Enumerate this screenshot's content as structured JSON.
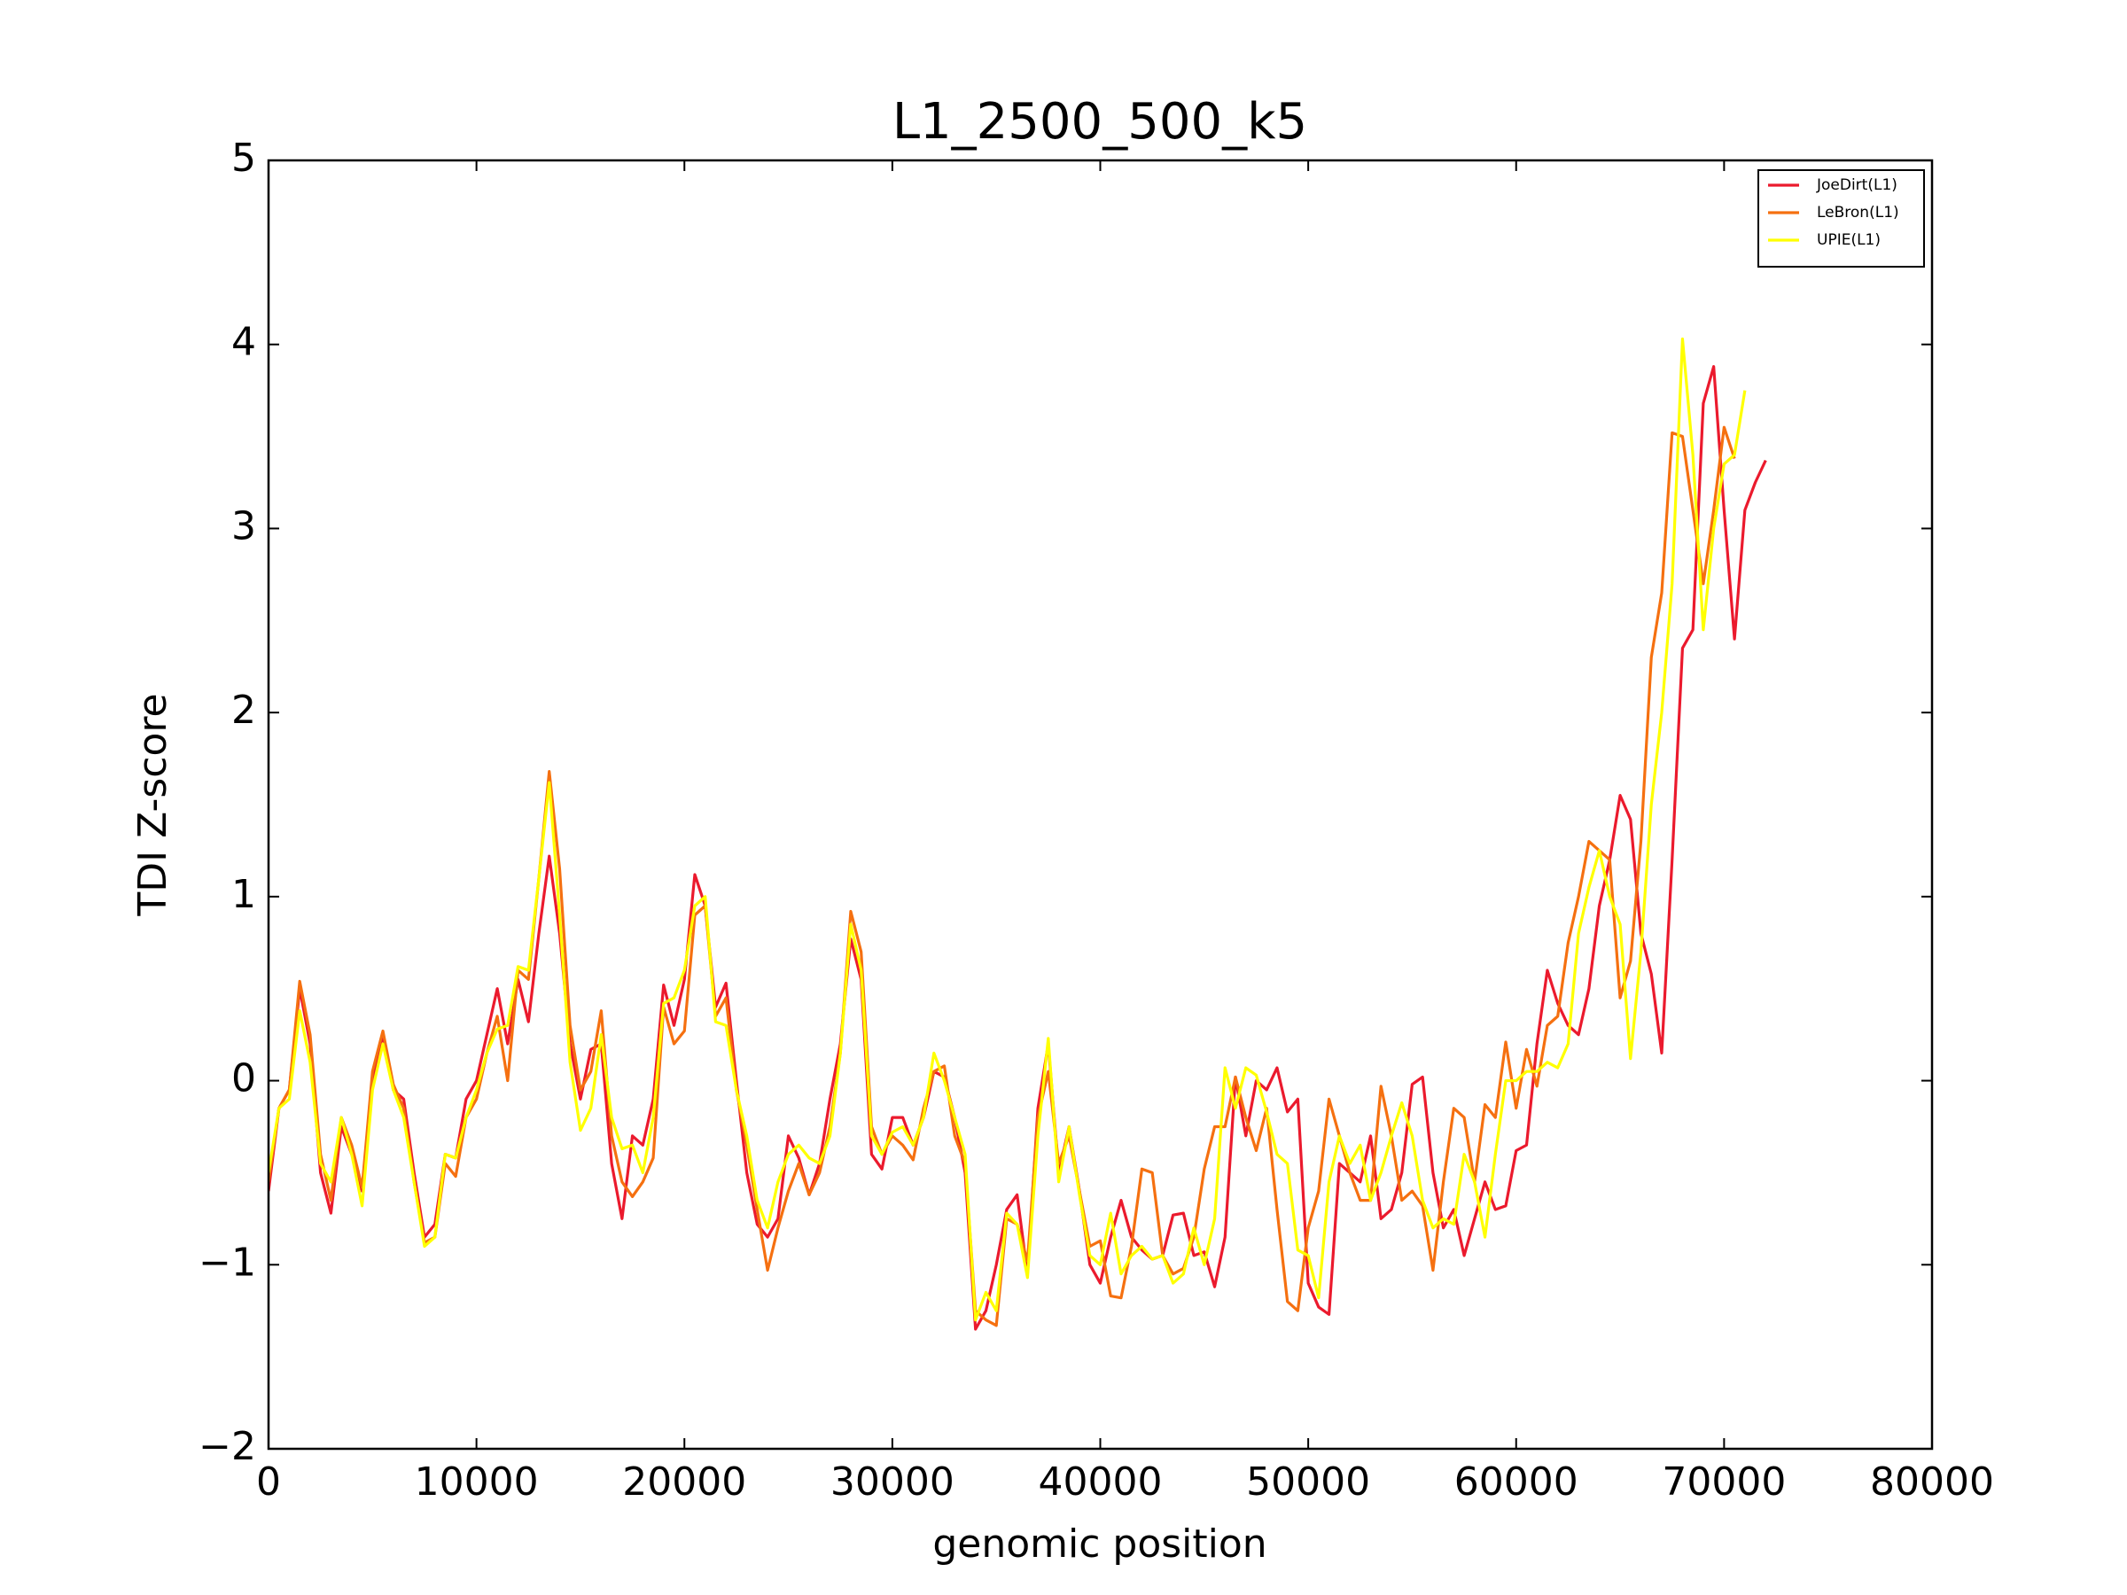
{
  "chart_data": {
    "type": "line",
    "title": "L1_2500_500_k5",
    "xlabel": "genomic position",
    "ylabel": "TDI Z-score",
    "xlim": [
      0,
      80000
    ],
    "xticks": [
      0,
      10000,
      20000,
      30000,
      40000,
      50000,
      60000,
      70000,
      80000
    ],
    "ylim": [
      -2,
      5
    ],
    "yticks": [
      {
        "value": -2,
        "label": "−2"
      },
      {
        "value": -1,
        "label": "−1"
      },
      0,
      1,
      2,
      3,
      4,
      5
    ],
    "grid": false,
    "legend": "upper right",
    "series": [
      {
        "name": "JoeDirt(L1)",
        "color": "#eb1a2d",
        "x": [
          0,
          500,
          1000,
          1500,
          2000,
          2500,
          3000,
          3500,
          4000,
          4500,
          5000,
          5500,
          6000,
          6500,
          7000,
          7500,
          8000,
          8500,
          9000,
          9500,
          10000,
          10500,
          11000,
          11500,
          12000,
          12500,
          13000,
          13500,
          14000,
          14500,
          15000,
          15500,
          16000,
          16500,
          17000,
          17500,
          18000,
          18500,
          19000,
          19500,
          20000,
          20500,
          21000,
          21500,
          22000,
          22500,
          23000,
          23500,
          24000,
          24500,
          25000,
          25500,
          26000,
          26500,
          27000,
          27500,
          28000,
          28500,
          29000,
          29500,
          30000,
          30500,
          31000,
          31500,
          32000,
          32500,
          33000,
          33500,
          34000,
          34500,
          35000,
          35500,
          36000,
          36500,
          37000,
          37500,
          38000,
          38500,
          39000,
          39500,
          40000,
          40500,
          41000,
          41500,
          42000,
          42500,
          43000,
          43500,
          44000,
          44500,
          45000,
          45500,
          46000,
          46500,
          47000,
          47500,
          48000,
          48500,
          49000,
          49500,
          50000,
          50500,
          51000,
          51500,
          52000,
          52500,
          53000,
          53500,
          54000,
          54500,
          55000,
          55500,
          56000,
          56500,
          57000,
          57500,
          58000,
          58500,
          59000,
          59500,
          60000,
          60500,
          61000,
          61500,
          62000,
          62500,
          63000,
          63500,
          64000,
          64500,
          65000,
          65500,
          66000,
          66500,
          67000,
          67500,
          68000,
          68500,
          69000,
          69500,
          70000,
          70500,
          71000,
          71500,
          72000
        ],
        "values": [
          -0.6,
          -0.15,
          -0.05,
          0.5,
          0.2,
          -0.5,
          -0.72,
          -0.25,
          -0.4,
          -0.6,
          0.0,
          0.25,
          -0.05,
          -0.1,
          -0.5,
          -0.85,
          -0.78,
          -0.4,
          -0.42,
          -0.1,
          0.0,
          0.25,
          0.5,
          0.2,
          0.55,
          0.32,
          0.8,
          1.22,
          0.8,
          0.2,
          -0.1,
          0.17,
          0.2,
          -0.45,
          -0.75,
          -0.3,
          -0.35,
          -0.1,
          0.52,
          0.3,
          0.55,
          1.12,
          0.95,
          0.4,
          0.53,
          0.0,
          -0.5,
          -0.78,
          -0.85,
          -0.75,
          -0.3,
          -0.42,
          -0.62,
          -0.45,
          -0.1,
          0.2,
          0.77,
          0.55,
          -0.4,
          -0.48,
          -0.2,
          -0.2,
          -0.35,
          -0.2,
          0.05,
          0.02,
          -0.2,
          -0.5,
          -1.35,
          -1.25,
          -1.0,
          -0.7,
          -0.62,
          -1.05,
          -0.15,
          0.2,
          -0.5,
          -0.25,
          -0.6,
          -1.0,
          -1.1,
          -0.85,
          -0.65,
          -0.85,
          -0.92,
          -0.97,
          -0.95,
          -0.73,
          -0.72,
          -0.95,
          -0.93,
          -1.12,
          -0.85,
          0.02,
          -0.3,
          0.0,
          -0.05,
          0.07,
          -0.17,
          -0.1,
          -1.1,
          -1.23,
          -1.27,
          -0.45,
          -0.5,
          -0.55,
          -0.3,
          -0.75,
          -0.7,
          -0.5,
          -0.02,
          0.02,
          -0.5,
          -0.8,
          -0.7,
          -0.95,
          -0.75,
          -0.55,
          -0.7,
          -0.68,
          -0.38,
          -0.35,
          0.2,
          0.6,
          0.42,
          0.3,
          0.25,
          0.5,
          0.95,
          1.2,
          1.55,
          1.42,
          0.8,
          0.58,
          0.15,
          1.2,
          2.35,
          2.45,
          3.68,
          3.88,
          3.1,
          2.4,
          3.1,
          3.25,
          3.37
        ]
      },
      {
        "name": "LeBron(L1)",
        "color": "#f57010",
        "x": [
          0,
          500,
          1000,
          1500,
          2000,
          2500,
          3000,
          3500,
          4000,
          4500,
          5000,
          5500,
          6000,
          6500,
          7000,
          7500,
          8000,
          8500,
          9000,
          9500,
          10000,
          10500,
          11000,
          11500,
          12000,
          12500,
          13000,
          13500,
          14000,
          14500,
          15000,
          15500,
          16000,
          16500,
          17000,
          17500,
          18000,
          18500,
          19000,
          19500,
          20000,
          20500,
          21000,
          21500,
          22000,
          22500,
          23000,
          23500,
          24000,
          24500,
          25000,
          25500,
          26000,
          26500,
          27000,
          27500,
          28000,
          28500,
          29000,
          29500,
          30000,
          30500,
          31000,
          31500,
          32000,
          32500,
          33000,
          33500,
          34000,
          34500,
          35000,
          35500,
          36000,
          36500,
          37000,
          37500,
          38000,
          38500,
          39000,
          39500,
          40000,
          40500,
          41000,
          41500,
          42000,
          42500,
          43000,
          43500,
          44000,
          44500,
          45000,
          45500,
          46000,
          46500,
          47000,
          47500,
          48000,
          48500,
          49000,
          49500,
          50000,
          50500,
          51000,
          51500,
          52000,
          52500,
          53000,
          53500,
          54000,
          54500,
          55000,
          55500,
          56000,
          56500,
          57000,
          57500,
          58000,
          58500,
          59000,
          59500,
          60000,
          60500,
          61000,
          61500,
          62000,
          62500,
          63000,
          63500,
          64000,
          64500,
          65000,
          65500,
          66000,
          66500,
          67000,
          67500,
          68000,
          68500,
          69000,
          69500,
          70000,
          70500
        ],
        "values": [
          -0.55,
          -0.15,
          -0.05,
          0.54,
          0.25,
          -0.4,
          -0.65,
          -0.2,
          -0.35,
          -0.58,
          0.05,
          0.27,
          -0.02,
          -0.15,
          -0.55,
          -0.88,
          -0.85,
          -0.45,
          -0.52,
          -0.2,
          -0.1,
          0.15,
          0.35,
          0.0,
          0.6,
          0.55,
          1.1,
          1.68,
          1.15,
          0.3,
          -0.05,
          0.05,
          0.38,
          -0.3,
          -0.55,
          -0.63,
          -0.55,
          -0.42,
          0.4,
          0.2,
          0.27,
          0.9,
          0.95,
          0.35,
          0.45,
          -0.05,
          -0.35,
          -0.7,
          -1.03,
          -0.8,
          -0.6,
          -0.45,
          -0.62,
          -0.5,
          -0.25,
          0.15,
          0.92,
          0.7,
          -0.25,
          -0.4,
          -0.3,
          -0.35,
          -0.43,
          -0.15,
          0.05,
          0.08,
          -0.3,
          -0.45,
          -1.25,
          -1.3,
          -1.33,
          -0.75,
          -0.78,
          -0.98,
          -0.2,
          0.05,
          -0.45,
          -0.3,
          -0.6,
          -0.9,
          -0.87,
          -1.17,
          -1.18,
          -0.9,
          -0.48,
          -0.5,
          -0.95,
          -1.05,
          -1.02,
          -0.85,
          -0.48,
          -0.25,
          -0.25,
          0.02,
          -0.2,
          -0.38,
          -0.15,
          -0.7,
          -1.2,
          -1.25,
          -0.8,
          -0.6,
          -0.1,
          -0.3,
          -0.5,
          -0.65,
          -0.65,
          -0.03,
          -0.3,
          -0.65,
          -0.6,
          -0.68,
          -1.03,
          -0.55,
          -0.15,
          -0.2,
          -0.55,
          -0.13,
          -0.2,
          0.21,
          -0.15,
          0.17,
          -0.03,
          0.3,
          0.35,
          0.75,
          1.0,
          1.3,
          1.25,
          1.2,
          0.45,
          0.65,
          1.3,
          2.3,
          2.65,
          3.52,
          3.5,
          3.1,
          2.7,
          3.1,
          3.55,
          3.38
        ]
      },
      {
        "name": "UPIE(L1)",
        "color": "#ffff00",
        "x": [
          0,
          500,
          1000,
          1500,
          2000,
          2500,
          3000,
          3500,
          4000,
          4500,
          5000,
          5500,
          6000,
          6500,
          7000,
          7500,
          8000,
          8500,
          9000,
          9500,
          10000,
          10500,
          11000,
          11500,
          12000,
          12500,
          13000,
          13500,
          14000,
          14500,
          15000,
          15500,
          16000,
          16500,
          17000,
          17500,
          18000,
          18500,
          19000,
          19500,
          20000,
          20500,
          21000,
          21500,
          22000,
          22500,
          23000,
          23500,
          24000,
          24500,
          25000,
          25500,
          26000,
          26500,
          27000,
          27500,
          28000,
          28500,
          29000,
          29500,
          30000,
          30500,
          31000,
          31500,
          32000,
          32500,
          33000,
          33500,
          34000,
          34500,
          35000,
          35500,
          36000,
          36500,
          37000,
          37500,
          38000,
          38500,
          39000,
          39500,
          40000,
          40500,
          41000,
          41500,
          42000,
          42500,
          43000,
          43500,
          44000,
          44500,
          45000,
          45500,
          46000,
          46500,
          47000,
          47500,
          48000,
          48500,
          49000,
          49500,
          50000,
          50500,
          51000,
          51500,
          52000,
          52500,
          53000,
          53500,
          54000,
          54500,
          55000,
          55500,
          56000,
          56500,
          57000,
          57500,
          58000,
          58500,
          59000,
          59500,
          60000,
          60500,
          61000,
          61500,
          62000,
          62500,
          63000,
          63500,
          64000,
          64500,
          65000,
          65500,
          66000,
          66500,
          67000,
          67500,
          68000,
          68500,
          69000,
          69500,
          70000,
          70500,
          71000
        ],
        "values": [
          -0.5,
          -0.15,
          -0.1,
          0.38,
          0.1,
          -0.45,
          -0.55,
          -0.2,
          -0.4,
          -0.68,
          -0.05,
          0.2,
          -0.05,
          -0.2,
          -0.55,
          -0.9,
          -0.85,
          -0.4,
          -0.42,
          -0.2,
          -0.05,
          0.15,
          0.28,
          0.3,
          0.62,
          0.6,
          1.1,
          1.62,
          0.9,
          0.1,
          -0.27,
          -0.15,
          0.25,
          -0.2,
          -0.37,
          -0.35,
          -0.5,
          -0.2,
          0.42,
          0.45,
          0.6,
          0.95,
          1.0,
          0.32,
          0.3,
          -0.05,
          -0.3,
          -0.65,
          -0.8,
          -0.55,
          -0.4,
          -0.35,
          -0.42,
          -0.45,
          -0.3,
          0.15,
          0.85,
          0.6,
          -0.3,
          -0.4,
          -0.28,
          -0.25,
          -0.35,
          -0.2,
          0.15,
          0.0,
          -0.2,
          -0.4,
          -1.3,
          -1.15,
          -1.25,
          -0.72,
          -0.78,
          -1.07,
          -0.3,
          0.23,
          -0.55,
          -0.25,
          -0.62,
          -0.95,
          -1.0,
          -0.72,
          -1.05,
          -0.95,
          -0.9,
          -0.97,
          -0.95,
          -1.1,
          -1.05,
          -0.8,
          -1.0,
          -0.75,
          0.07,
          -0.15,
          0.07,
          0.03,
          -0.17,
          -0.4,
          -0.45,
          -0.92,
          -0.95,
          -1.18,
          -0.55,
          -0.3,
          -0.45,
          -0.35,
          -0.65,
          -0.5,
          -0.3,
          -0.12,
          -0.3,
          -0.65,
          -0.8,
          -0.75,
          -0.78,
          -0.4,
          -0.55,
          -0.85,
          -0.4,
          0.0,
          0.0,
          0.05,
          0.05,
          0.1,
          0.07,
          0.2,
          0.8,
          1.05,
          1.25,
          1.0,
          0.85,
          0.12,
          0.7,
          1.5,
          2.0,
          2.7,
          4.03,
          3.4,
          2.45,
          3.0,
          3.35,
          3.4,
          3.75
        ]
      }
    ]
  }
}
